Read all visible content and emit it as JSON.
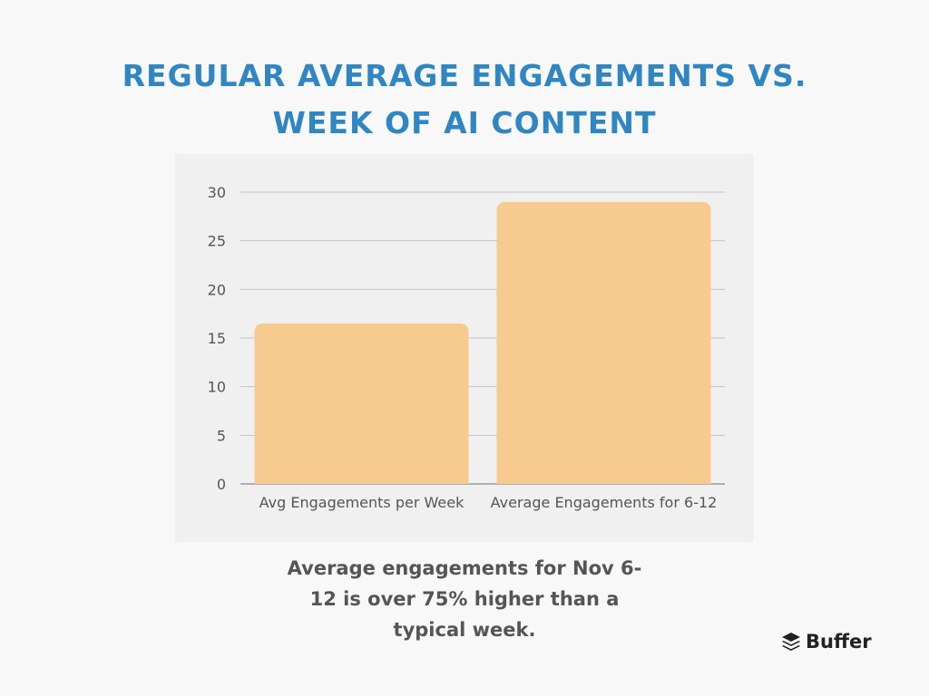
{
  "title_lines": [
    "Regular Average Engagements vs.",
    "Week of AI Content"
  ],
  "caption": "Average engagements for Nov 6-12 is over 75% higher than a typical week.",
  "brand": {
    "name": "Buffer",
    "icon": "buffer-logo-icon"
  },
  "colors": {
    "title": "#2f86c2",
    "bar": "#f7cb90",
    "plot_background": "#f0f0f0",
    "page_background": "#f8f8f8",
    "gridline": "#c4c4c4",
    "axis_text": "#555555"
  },
  "chart_data": {
    "type": "bar",
    "title": "Regular Average Engagements vs. Week of AI Content",
    "categories": [
      "Avg Engagements per Week",
      "Average Engagements for 6-12"
    ],
    "values": [
      16.5,
      29
    ],
    "xlabel": "",
    "ylabel": "",
    "ylim": [
      0,
      30
    ],
    "yticks": [
      0,
      5,
      10,
      15,
      20,
      25,
      30
    ],
    "grid": true,
    "legend": "none"
  }
}
